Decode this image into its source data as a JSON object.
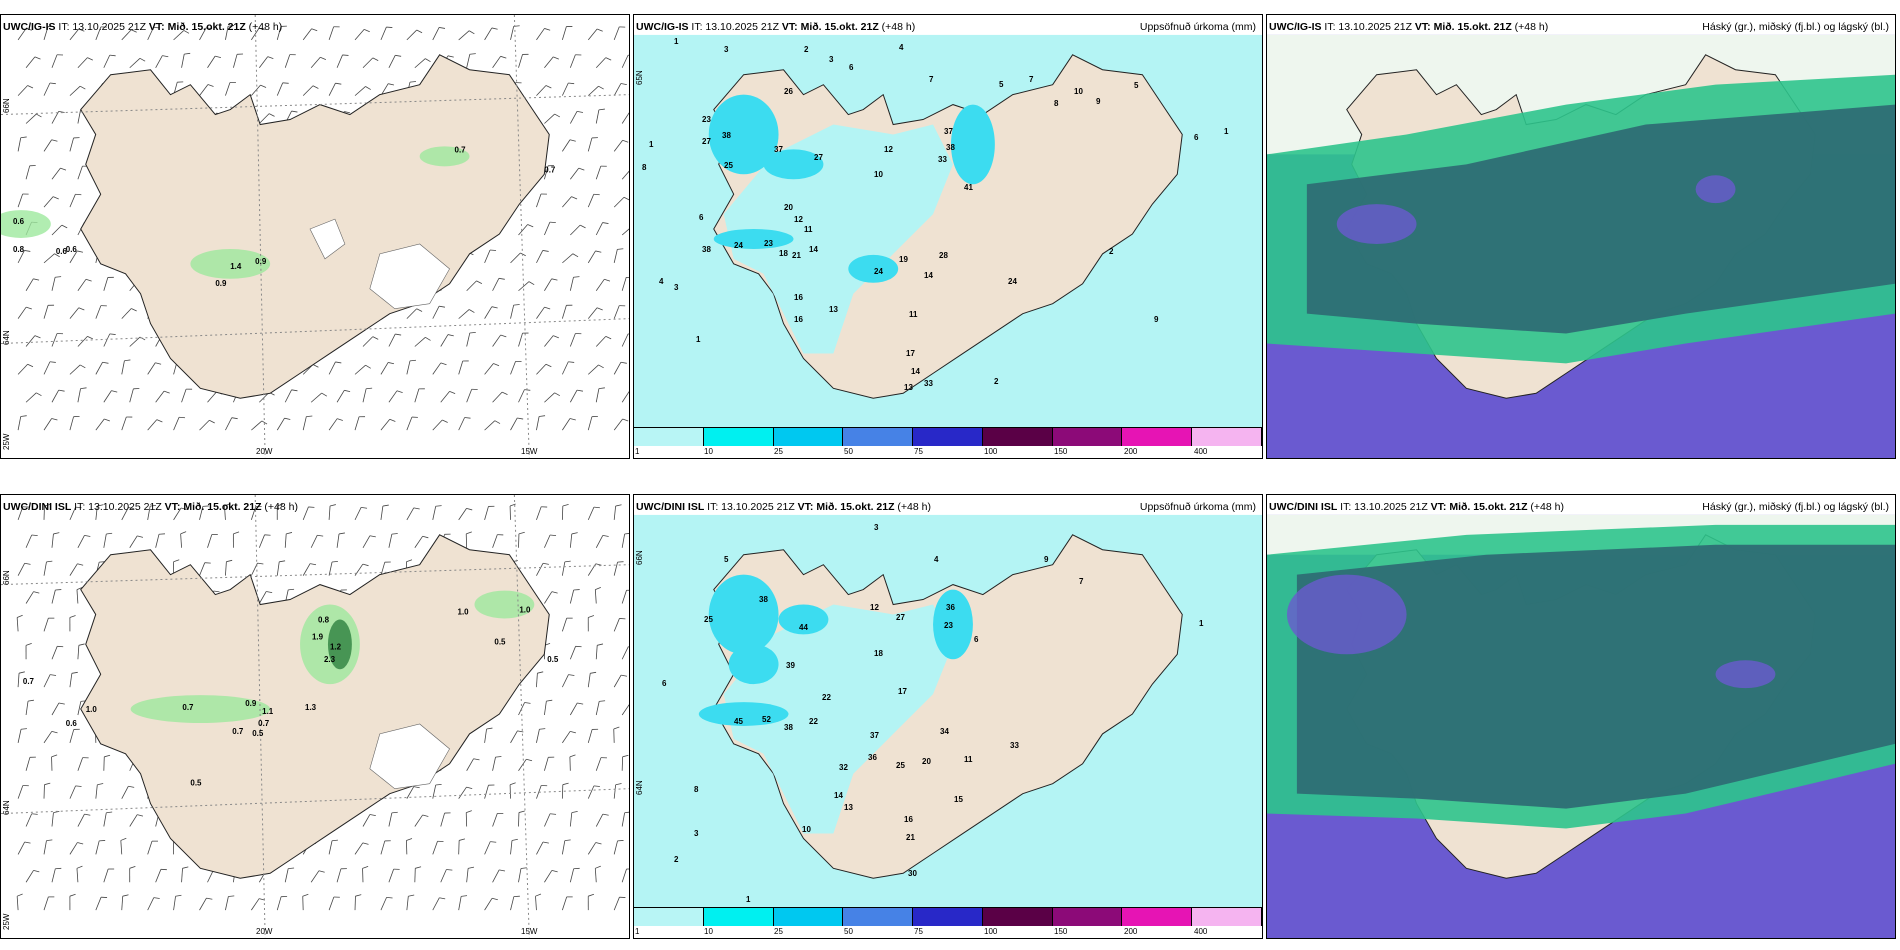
{
  "rows": [
    {
      "model": "UWC/IG-IS",
      "wind_panel": {
        "header_model": "UWC/IG-IS",
        "header_it": " IT: 13.10.2025 21Z ",
        "header_vt": "VT: Mið. 15.okt. 21Z",
        "header_lead": " (+48 h)",
        "lon_labels": [
          "20W",
          "15W"
        ],
        "lat_labels": [
          "66N",
          "64N",
          "25W"
        ],
        "values": [
          "0.7",
          "0.7",
          "0.6",
          "0.8",
          "0.6",
          "0.6",
          "1.4",
          "0.9",
          "0.9"
        ]
      },
      "precip_panel": {
        "header_model": "UWC/IG-IS",
        "header_it": " IT: 13.10.2025 21Z ",
        "header_vt": "VT: Mið. 15.okt. 21Z",
        "header_lead": " (+48 h)",
        "header_right": "Uppsöfnuð úrkoma (mm)",
        "lat_labels": [
          "65N"
        ],
        "values": [
          "1",
          "3",
          "2",
          "4",
          "3",
          "6",
          "1",
          "7",
          "5",
          "10",
          "37",
          "38",
          "33",
          "41",
          "26",
          "27",
          "23",
          "38",
          "37",
          "27",
          "25",
          "20",
          "12",
          "12",
          "11",
          "10",
          "38",
          "24",
          "23",
          "18",
          "21",
          "14",
          "28",
          "24",
          "19",
          "14",
          "16",
          "24",
          "13",
          "11",
          "16",
          "9",
          "8",
          "6",
          "4",
          "3",
          "2",
          "1",
          "17",
          "14",
          "13",
          "33",
          "2",
          "5",
          "7",
          "8",
          "9",
          "6",
          "1"
        ]
      },
      "cloud_panel": {
        "header_model": "UWC/IG-IS",
        "header_it": " IT: 13.10.2025 21Z ",
        "header_vt": "VT: Mið. 15.okt. 21Z",
        "header_lead": " (+48 h)",
        "header_right": "Háský (gr.), miðský (fj.bl.) og lágský (bl.)"
      }
    },
    {
      "model": "UWC/DINI ISL",
      "wind_panel": {
        "header_model": "UWC/DINI ISL",
        "header_it": " IT: 13.10.2025 21Z ",
        "header_vt": "VT: Mið. 15.okt. 21Z",
        "header_lead": " (+48 h)",
        "lon_labels": [
          "20W",
          "15W"
        ],
        "lat_labels": [
          "66N",
          "64N",
          "25W"
        ],
        "values": [
          "0.8",
          "1.9",
          "1.2",
          "2.3",
          "1.0",
          "1.0",
          "0.5",
          "0.5",
          "0.7",
          "1.0",
          "0.6",
          "0.7",
          "0.9",
          "1.1",
          "0.7",
          "0.7",
          "0.5",
          "1.3",
          "0.5"
        ]
      },
      "precip_panel": {
        "header_model": "UWC/DINI ISL",
        "header_it": " IT: 13.10.2025 21Z ",
        "header_vt": "VT: Mið. 15.okt. 21Z",
        "header_lead": " (+48 h)",
        "header_right": "Uppsöfnuð úrkoma (mm)",
        "lat_labels": [
          "66N",
          "64N"
        ],
        "values": [
          "3",
          "5",
          "4",
          "38",
          "23",
          "36",
          "27",
          "25",
          "44",
          "12",
          "18",
          "6",
          "39",
          "45",
          "52",
          "38",
          "22",
          "22",
          "17",
          "37",
          "36",
          "25",
          "20",
          "34",
          "33",
          "16",
          "21",
          "30",
          "32",
          "1",
          "2",
          "3",
          "6",
          "7",
          "8",
          "9",
          "10",
          "11",
          "13",
          "14",
          "15",
          "1"
        ]
      },
      "cloud_panel": {
        "header_model": "UWC/DINI ISL",
        "header_it": " IT: 13.10.2025 21Z ",
        "header_vt": "VT: Mið. 15.okt. 21Z",
        "header_lead": " (+48 h)",
        "header_right": "Háský (gr.), miðský (fj.bl.) og lágský (bl.)"
      }
    }
  ],
  "colorbar": {
    "colors": [
      "#b8f5f5",
      "#00f0f0",
      "#00c8f0",
      "#4682e6",
      "#2828c8",
      "#5a0046",
      "#8c0a78",
      "#e614b4",
      "#f5b4f0"
    ],
    "ticks": [
      "1",
      "10",
      "25",
      "50",
      "75",
      "100",
      "150",
      "200",
      "400"
    ]
  },
  "map_colors": {
    "land": "#efe2d2",
    "sea": "#ffffff",
    "precip_light": "#b4f4f4",
    "precip_mid": "#3cdcf0",
    "precip_heavy": "#14aadc",
    "cloud_high": "#2e6e74",
    "cloud_mid": "#2ec48c",
    "cloud_low": "#6a5ad0",
    "rain_green": "#9de89d"
  }
}
